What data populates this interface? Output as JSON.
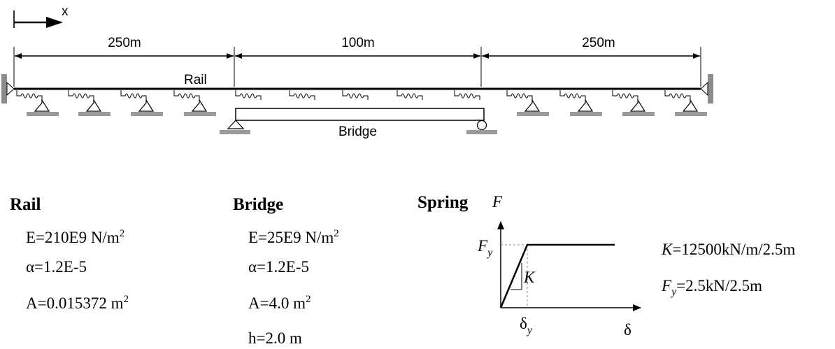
{
  "diagram": {
    "x_axis_label": "x",
    "spans": [
      {
        "label": "250m"
      },
      {
        "label": "100m"
      },
      {
        "label": "250m"
      }
    ],
    "rail_label": "Rail",
    "bridge_label": "Bridge"
  },
  "rail": {
    "heading": "Rail",
    "E": {
      "text": "E=210E9 N/m",
      "sup": "2"
    },
    "alpha": "α=1.2E-5",
    "A": {
      "text": "A=0.015372 m",
      "sup": "2"
    }
  },
  "bridge": {
    "heading": "Bridge",
    "E": {
      "text": "E=25E9 N/m",
      "sup": "2"
    },
    "alpha": "α=1.2E-5",
    "A": {
      "text": "A=4.0 m",
      "sup": "2"
    },
    "h": "h=2.0 m"
  },
  "spring": {
    "heading": "Spring",
    "graph": {
      "y_label": "F",
      "x_label": "δ",
      "yield_force": {
        "main": "F",
        "sub": "y"
      },
      "yield_disp": {
        "main": "δ",
        "sub": "y"
      },
      "stiffness": "K"
    },
    "K": {
      "symbol": "K",
      "value": "=12500kN/m/2.5m"
    },
    "Fy": {
      "symbol": "F",
      "sub": "y",
      "value": "=2.5kN/2.5m"
    }
  }
}
